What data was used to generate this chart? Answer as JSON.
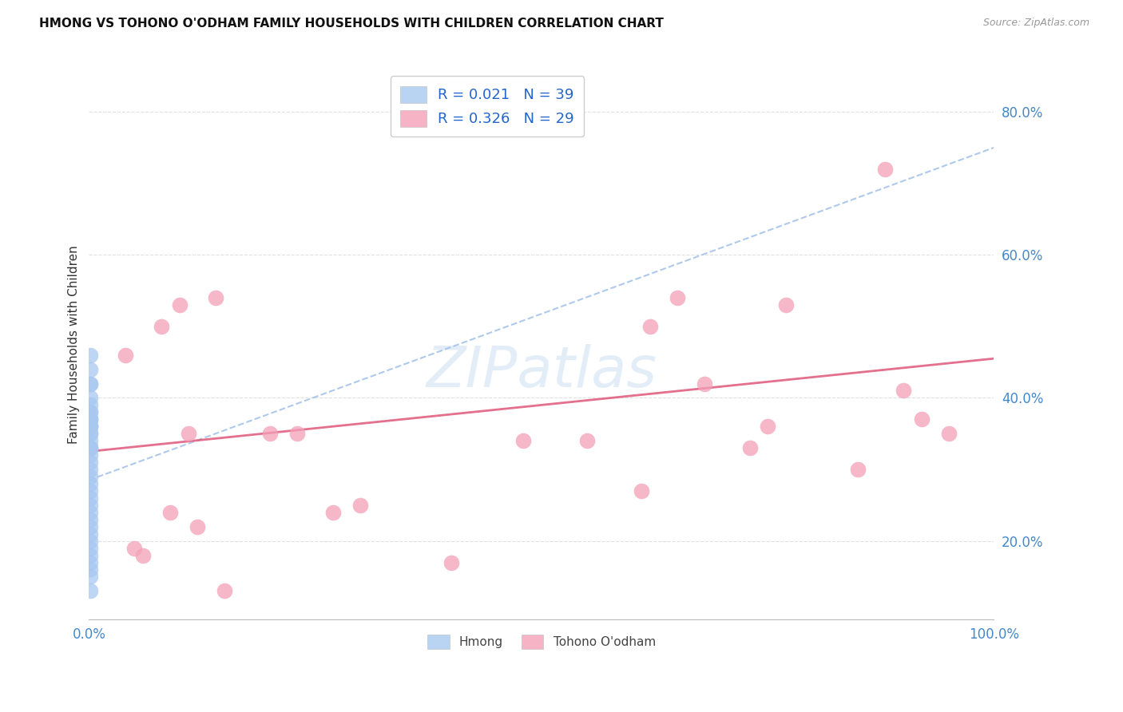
{
  "title": "HMONG VS TOHONO O'ODHAM FAMILY HOUSEHOLDS WITH CHILDREN CORRELATION CHART",
  "source": "Source: ZipAtlas.com",
  "ylabel": "Family Households with Children",
  "legend_labels": [
    "Hmong",
    "Tohono O'odham"
  ],
  "r_hmong": 0.021,
  "n_hmong": 39,
  "r_tohono": 0.326,
  "n_tohono": 29,
  "hmong_color": "#a8c8f0",
  "tohono_color": "#f4a0b8",
  "trendline_hmong_color": "#a0c0e8",
  "trendline_tohono_color": "#e06080",
  "background_color": "#ffffff",
  "grid_color": "#dddddd",
  "hmong_x": [
    0.001,
    0.001,
    0.001,
    0.001,
    0.001,
    0.001,
    0.001,
    0.001,
    0.001,
    0.001,
    0.001,
    0.001,
    0.001,
    0.001,
    0.001,
    0.001,
    0.001,
    0.001,
    0.001,
    0.001,
    0.001,
    0.001,
    0.001,
    0.001,
    0.001,
    0.001,
    0.001,
    0.001,
    0.001,
    0.001,
    0.001,
    0.001,
    0.001,
    0.001,
    0.001,
    0.001,
    0.001,
    0.001,
    0.001
  ],
  "hmong_y": [
    0.46,
    0.44,
    0.42,
    0.42,
    0.4,
    0.39,
    0.38,
    0.38,
    0.37,
    0.37,
    0.37,
    0.36,
    0.36,
    0.36,
    0.35,
    0.35,
    0.34,
    0.33,
    0.33,
    0.33,
    0.32,
    0.31,
    0.3,
    0.29,
    0.28,
    0.27,
    0.26,
    0.25,
    0.24,
    0.23,
    0.22,
    0.21,
    0.2,
    0.19,
    0.18,
    0.17,
    0.16,
    0.15,
    0.13
  ],
  "tohono_x": [
    0.04,
    0.08,
    0.09,
    0.1,
    0.12,
    0.14,
    0.15,
    0.2,
    0.23,
    0.05,
    0.06,
    0.11,
    0.27,
    0.48,
    0.61,
    0.62,
    0.65,
    0.68,
    0.73,
    0.75,
    0.77,
    0.85,
    0.88,
    0.9,
    0.92,
    0.95,
    0.3,
    0.4,
    0.55
  ],
  "tohono_y": [
    0.46,
    0.5,
    0.24,
    0.53,
    0.22,
    0.54,
    0.13,
    0.35,
    0.35,
    0.19,
    0.18,
    0.35,
    0.24,
    0.34,
    0.27,
    0.5,
    0.54,
    0.42,
    0.33,
    0.36,
    0.53,
    0.3,
    0.72,
    0.41,
    0.37,
    0.35,
    0.25,
    0.17,
    0.34
  ],
  "xlim": [
    0.0,
    1.0
  ],
  "ylim": [
    0.09,
    0.86
  ],
  "yticks": [
    0.2,
    0.4,
    0.6,
    0.8
  ],
  "ytick_labels": [
    "20.0%",
    "40.0%",
    "60.0%",
    "80.0%"
  ],
  "trend_hmong_y0": 0.285,
  "trend_hmong_y1": 0.75,
  "trend_tohono_y0": 0.325,
  "trend_tohono_y1": 0.455
}
